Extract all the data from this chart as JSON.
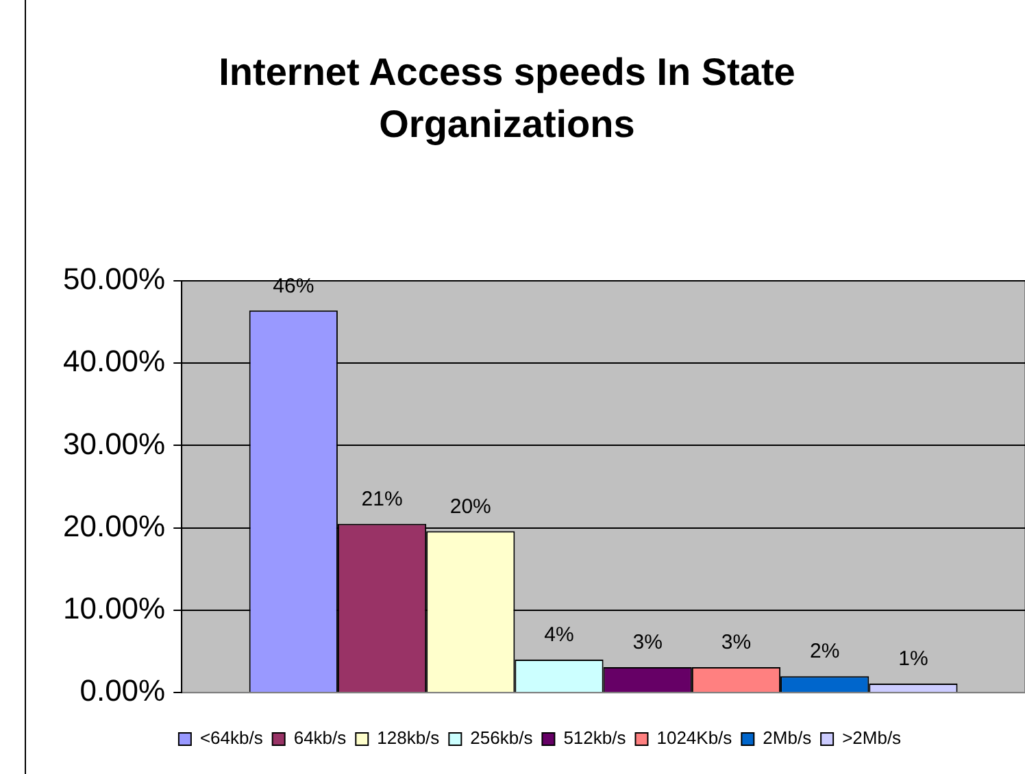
{
  "chart_data": {
    "type": "bar",
    "title": "Internet Access speeds In State Organizations",
    "categories": [
      null
    ],
    "series": [
      {
        "name": "<64kb/s",
        "color": "#9999ff",
        "values": [
          46.4
        ],
        "value_labels": [
          "46%"
        ]
      },
      {
        "name": "64kb/s",
        "color": "#993366",
        "values": [
          20.5
        ],
        "value_labels": [
          "21%"
        ]
      },
      {
        "name": "128kb/s",
        "color": "#ffffcc",
        "values": [
          19.6
        ],
        "value_labels": [
          "20%"
        ]
      },
      {
        "name": "256kb/s",
        "color": "#ccffff",
        "values": [
          4.0
        ],
        "value_labels": [
          "4%"
        ]
      },
      {
        "name": "512kb/s",
        "color": "#660066",
        "values": [
          3.1
        ],
        "value_labels": [
          "3%"
        ]
      },
      {
        "name": "1024Kb/s",
        "color": "#ff8080",
        "values": [
          3.1
        ],
        "value_labels": [
          "3%"
        ]
      },
      {
        "name": "2Mb/s",
        "color": "#0066cc",
        "values": [
          2.0
        ],
        "value_labels": [
          "2%"
        ]
      },
      {
        "name": ">2Mb/s",
        "color": "#ccccff",
        "values": [
          1.1
        ],
        "value_labels": [
          "1%"
        ]
      }
    ],
    "ylim": [
      0,
      50
    ],
    "yticks": [
      {
        "value": 0,
        "label": "0.00%"
      },
      {
        "value": 10,
        "label": "10.00%"
      },
      {
        "value": 20,
        "label": "20.00%"
      },
      {
        "value": 30,
        "label": "30.00%"
      },
      {
        "value": 40,
        "label": "40.00%"
      },
      {
        "value": 50,
        "label": "50.00%"
      }
    ],
    "grid": "y",
    "legend": "bottom"
  }
}
